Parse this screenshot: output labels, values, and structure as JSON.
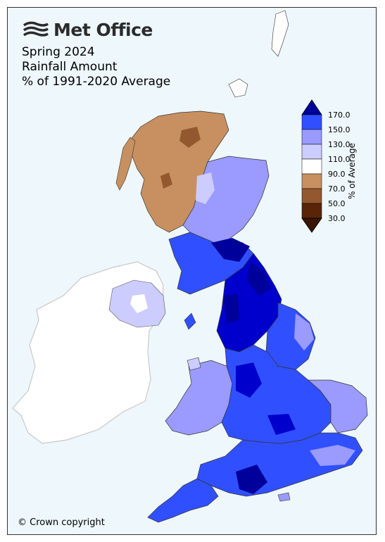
{
  "brand": {
    "name": "Met Office",
    "logo_icon": "met-office-swirl-icon"
  },
  "title": {
    "line1": "Spring 2024",
    "line2": "Rainfall Amount",
    "line3": "% of 1991-2020 Average"
  },
  "legend": {
    "axis_label": "% of Average",
    "ticks": [
      "170.0",
      "150.0",
      "130.0",
      "110.0",
      "90.0",
      "70.0",
      "50.0",
      "30.0"
    ],
    "bands": [
      {
        "range": "> 170",
        "color": "#00009b"
      },
      {
        "range": "150-170",
        "color": "#0000cd"
      },
      {
        "range": "130-150",
        "color": "#3050ff"
      },
      {
        "range": "110-130",
        "color": "#9a9aff"
      },
      {
        "range": "90-110",
        "color": "#ccccff"
      },
      {
        "range": "70-90",
        "color": "#ffffff"
      },
      {
        "range": "50-70",
        "color": "#c89060"
      },
      {
        "range": "30-50",
        "color": "#94582e"
      },
      {
        "range": "< 30",
        "color": "#5a2408"
      }
    ]
  },
  "map_colors": {
    "sea": "#eef7fb",
    "ireland": "#ffffff",
    "scotland_west": "#c89060"
  },
  "footer": {
    "copyright": "© Crown copyright"
  }
}
